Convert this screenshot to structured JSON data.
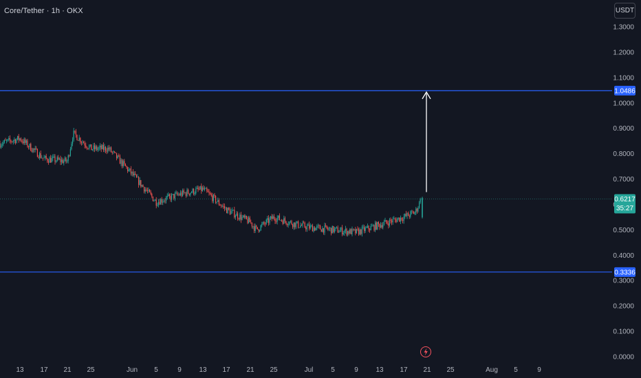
{
  "header": {
    "symbol_title": "Core/Tether · 1h · OKX"
  },
  "toolbar": {
    "currency_label": "USDT"
  },
  "colors": {
    "background": "#131722",
    "axis_text": "#b2b5be",
    "up": "#26a69a",
    "down": "#ef5350",
    "level_line": "#2962ff",
    "arrow": "#ffffff",
    "price_line": "#26a69a"
  },
  "icons": {
    "event_marker": "lightning-bolt-icon"
  },
  "chart_data": {
    "type": "candlestick",
    "title": "Core/Tether · 1h · OKX",
    "y_axis": {
      "ticks": [
        "1.3000",
        "1.2000",
        "1.1000",
        "1.0000",
        "0.9000",
        "0.8000",
        "0.7000",
        "0.6000",
        "0.5000",
        "0.4000",
        "0.3000",
        "0.2000",
        "0.1000",
        "0.0000"
      ],
      "ylim": [
        0,
        1.3
      ]
    },
    "x_axis": {
      "ticks": [
        "13",
        "17",
        "21",
        "25",
        "Jun",
        "5",
        "9",
        "13",
        "17",
        "21",
        "25",
        "Jul",
        "5",
        "9",
        "13",
        "17",
        "21",
        "25",
        "Aug",
        "5",
        "9"
      ]
    },
    "price_series": {
      "dates": [
        "May 10",
        "May 13",
        "May 17",
        "May 21",
        "May 22",
        "May 25",
        "May 28",
        "Jun 1",
        "Jun 5",
        "Jun 9",
        "Jun 13",
        "Jun 17",
        "Jun 21",
        "Jun 22",
        "Jun 25",
        "Jun 29",
        "Jul 1",
        "Jul 5",
        "Jul 9",
        "Jul 13",
        "Jul 17",
        "Jul 19",
        "Jul 20"
      ],
      "close": [
        0.84,
        0.86,
        0.78,
        0.77,
        0.88,
        0.82,
        0.82,
        0.72,
        0.61,
        0.64,
        0.66,
        0.58,
        0.53,
        0.5,
        0.55,
        0.52,
        0.51,
        0.5,
        0.49,
        0.52,
        0.55,
        0.57,
        0.62
      ]
    },
    "levels": [
      {
        "label": "1.0486",
        "value": 1.0486
      },
      {
        "label": "0.3336",
        "value": 0.3336
      }
    ],
    "current_price": {
      "label": "0.6217",
      "value": 0.6217,
      "countdown": "35:27"
    },
    "projection_arrow": {
      "from_price": 0.6217,
      "to_price": 1.0486
    }
  }
}
